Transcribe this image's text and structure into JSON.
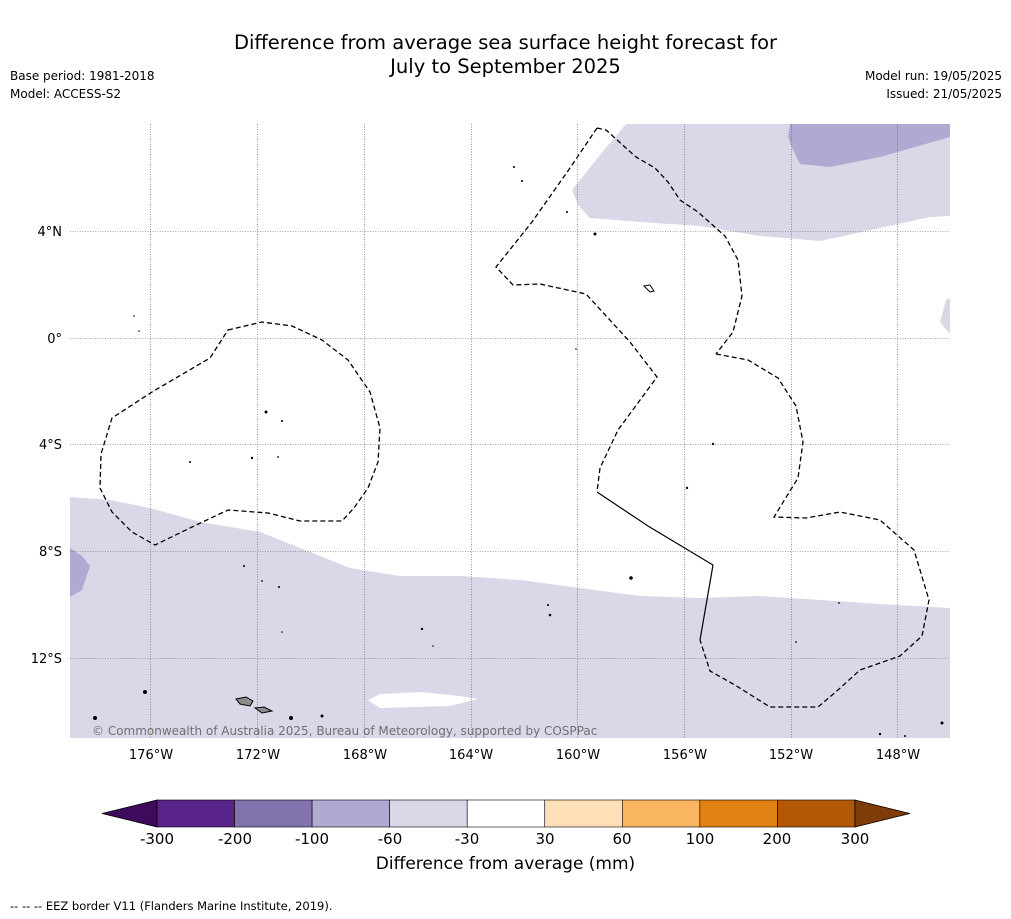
{
  "title_line1": "Difference from average sea surface height forecast for",
  "title_line2": "July to September 2025",
  "meta_left": [
    "Base period: 1981-2018",
    "Model: ACCESS-S2"
  ],
  "meta_right": [
    "Model run: 19/05/2025",
    "Issued: 21/05/2025"
  ],
  "copyright": "© Commonwealth of Australia 2025, Bureau of Meteorology, supported by COSPPac",
  "lon_labels": [
    "176°W",
    "172°W",
    "168°W",
    "164°W",
    "160°W",
    "156°W",
    "152°W",
    "148°W"
  ],
  "lat_labels": [
    "4°N",
    "0°",
    "4°S",
    "8°S",
    "12°S"
  ],
  "colorbar": {
    "title": "Difference from average (mm)",
    "ticks": [
      "-300",
      "-200",
      "-100",
      "-60",
      "-30",
      "30",
      "60",
      "100",
      "200",
      "300"
    ],
    "colors": [
      "#3d0a5c",
      "#57238b",
      "#8272ad",
      "#b0a9d1",
      "#d8d8e9",
      "#ffffff",
      "#fde0b7",
      "#f9b55f",
      "#e08214",
      "#b35807",
      "#7f3b08"
    ]
  },
  "footnote": "--  --  -- EEZ border V11 (Flanders Marine Institute, 2019)."
}
